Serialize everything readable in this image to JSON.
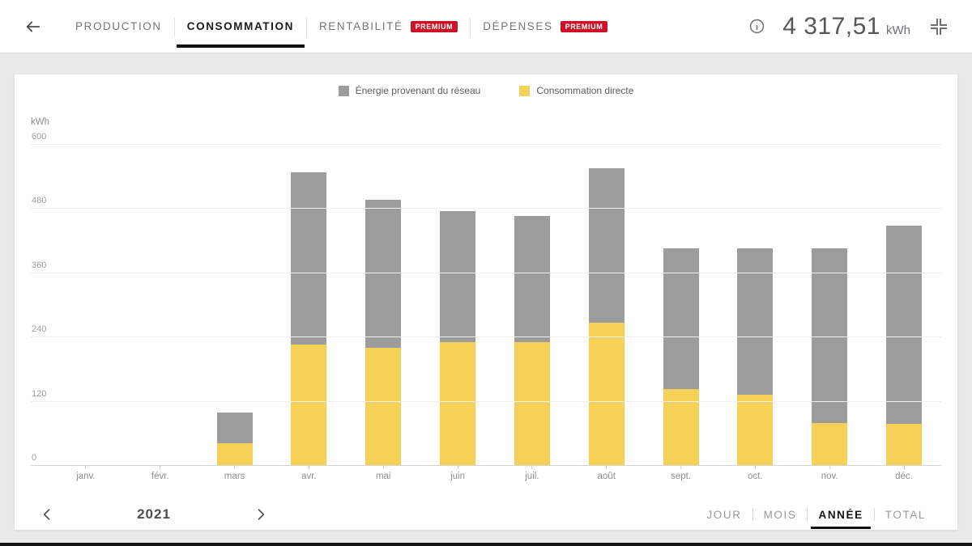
{
  "header": {
    "tabs": [
      {
        "label": "PRODUCTION",
        "active": false,
        "premium": false
      },
      {
        "label": "CONSOMMATION",
        "active": true,
        "premium": false
      },
      {
        "label": "RENTABILITÉ",
        "active": false,
        "premium": true
      },
      {
        "label": "DÉPENSES",
        "active": false,
        "premium": true
      }
    ],
    "premium_badge_label": "PREMIUM",
    "total_value": "4 317,51",
    "total_unit": "kWh"
  },
  "chart_data": {
    "type": "bar",
    "stacked": true,
    "unit_label": "kWh",
    "categories": [
      "janv.",
      "févr.",
      "mars",
      "avr.",
      "mai",
      "juin",
      "juil.",
      "août",
      "sept.",
      "oct.",
      "nov.",
      "déc."
    ],
    "series": [
      {
        "name": "Énergie provenant du réseau",
        "color": "#9c9c9c",
        "values": [
          0,
          0,
          58,
          321,
          277,
          244,
          236,
          289,
          263,
          273,
          326,
          371
        ]
      },
      {
        "name": "Consommation directe",
        "color": "#f6d158",
        "values": [
          0,
          0,
          42,
          227,
          220,
          232,
          231,
          267,
          143,
          133,
          80,
          78
        ]
      }
    ],
    "totals": [
      0,
      0,
      100,
      548,
      497,
      476,
      467,
      556,
      406,
      406,
      406,
      449
    ],
    "ylim": [
      0,
      600
    ],
    "yticks": [
      0,
      120,
      240,
      360,
      480,
      600
    ],
    "legend_position": "top",
    "grid": true
  },
  "footer": {
    "year": "2021",
    "range_tabs": [
      {
        "label": "JOUR",
        "active": false
      },
      {
        "label": "MOIS",
        "active": false
      },
      {
        "label": "ANNÉE",
        "active": true
      },
      {
        "label": "TOTAL",
        "active": false
      }
    ]
  }
}
